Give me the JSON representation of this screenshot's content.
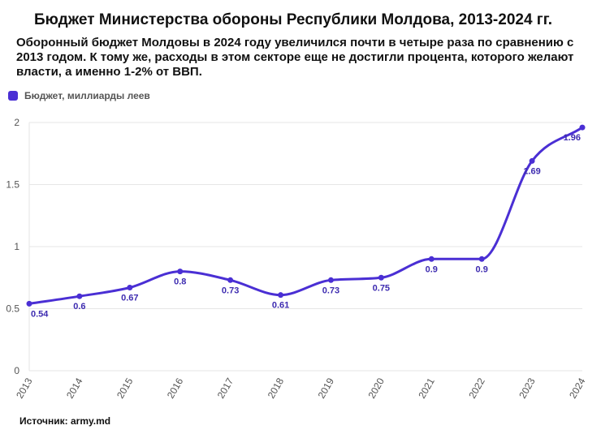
{
  "title": "Бюджет Министерства обороны Республики Молдова, 2013-2024 гг.",
  "subtitle": "Оборонный бюджет Молдовы в 2024 году увеличился почти в четыре раза по сравнению с 2013 годом. К тому же, расходы в этом секторе еще не достигли процента, которого желают власти, а именно 1-2% от ВВП.",
  "source": "Источник: army.md",
  "colors": {
    "line": "#4a2fd4",
    "grid": "#e6e6e6",
    "label": "#3d2bb0",
    "axis_text": "#555555"
  },
  "chart_data": {
    "type": "line",
    "categories": [
      "2013",
      "2014",
      "2015",
      "2016",
      "2017",
      "2018",
      "2019",
      "2020",
      "2021",
      "2022",
      "2023",
      "2024"
    ],
    "series": [
      {
        "name": "Бюджет, миллиарды леев",
        "values": [
          0.54,
          0.6,
          0.67,
          0.8,
          0.73,
          0.61,
          0.73,
          0.75,
          0.9,
          0.9,
          1.69,
          1.96
        ]
      }
    ],
    "data_labels": [
      "0.54",
      "0.6",
      "0.67",
      "0.8",
      "0.73",
      "0.61",
      "0.73",
      "0.75",
      "0.9",
      "0.9",
      "1.69",
      "1.96"
    ],
    "y_ticks": [
      "0",
      "0.5",
      "1",
      "1.5",
      "2"
    ],
    "ylim": [
      0,
      2
    ],
    "grid": true,
    "legend_position": "top-left"
  }
}
